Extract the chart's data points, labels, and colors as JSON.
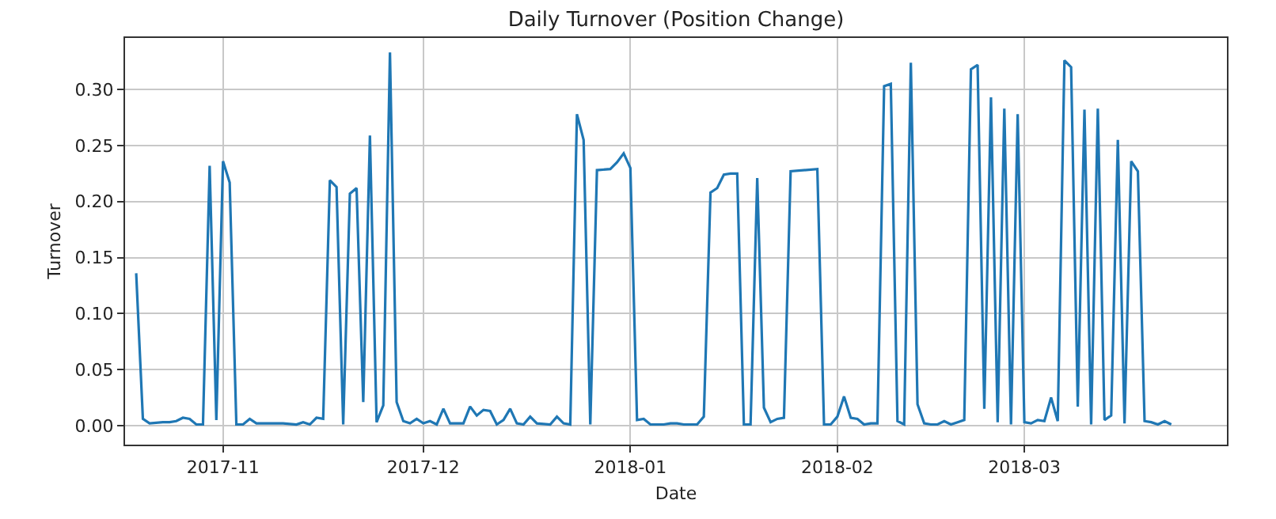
{
  "chart_data": {
    "type": "line",
    "title": "Daily Turnover (Position Change)",
    "xlabel": "Date",
    "ylabel": "Turnover",
    "x": [
      "2017-10-19",
      "2017-10-20",
      "2017-10-21",
      "2017-10-23",
      "2017-10-24",
      "2017-10-25",
      "2017-10-26",
      "2017-10-27",
      "2017-10-28",
      "2017-10-29",
      "2017-10-30",
      "2017-10-31",
      "2017-11-01",
      "2017-11-02",
      "2017-11-03",
      "2017-11-04",
      "2017-11-05",
      "2017-11-06",
      "2017-11-08",
      "2017-11-10",
      "2017-11-12",
      "2017-11-13",
      "2017-11-14",
      "2017-11-15",
      "2017-11-16",
      "2017-11-17",
      "2017-11-18",
      "2017-11-19",
      "2017-11-20",
      "2017-11-21",
      "2017-11-22",
      "2017-11-23",
      "2017-11-24",
      "2017-11-25",
      "2017-11-26",
      "2017-11-27",
      "2017-11-28",
      "2017-11-29",
      "2017-11-30",
      "2017-12-01",
      "2017-12-02",
      "2017-12-03",
      "2017-12-04",
      "2017-12-05",
      "2017-12-07",
      "2017-12-08",
      "2017-12-09",
      "2017-12-10",
      "2017-12-11",
      "2017-12-12",
      "2017-12-13",
      "2017-12-14",
      "2017-12-15",
      "2017-12-16",
      "2017-12-17",
      "2017-12-18",
      "2017-12-20",
      "2017-12-21",
      "2017-12-22",
      "2017-12-23",
      "2017-12-24",
      "2017-12-25",
      "2017-12-26",
      "2017-12-27",
      "2017-12-29",
      "2017-12-30",
      "2017-12-31",
      "2018-01-01",
      "2018-01-02",
      "2018-01-03",
      "2018-01-04",
      "2018-01-06",
      "2018-01-07",
      "2018-01-08",
      "2018-01-09",
      "2018-01-11",
      "2018-01-12",
      "2018-01-13",
      "2018-01-14",
      "2018-01-15",
      "2018-01-16",
      "2018-01-17",
      "2018-01-18",
      "2018-01-19",
      "2018-01-20",
      "2018-01-21",
      "2018-01-22",
      "2018-01-23",
      "2018-01-24",
      "2018-01-25",
      "2018-01-29",
      "2018-01-30",
      "2018-01-31",
      "2018-02-01",
      "2018-02-02",
      "2018-02-03",
      "2018-02-04",
      "2018-02-05",
      "2018-02-06",
      "2018-02-07",
      "2018-02-08",
      "2018-02-09",
      "2018-02-10",
      "2018-02-11",
      "2018-02-12",
      "2018-02-13",
      "2018-02-14",
      "2018-02-15",
      "2018-02-16",
      "2018-02-17",
      "2018-02-18",
      "2018-02-19",
      "2018-02-20",
      "2018-02-21",
      "2018-02-22",
      "2018-02-23",
      "2018-02-24",
      "2018-02-25",
      "2018-02-26",
      "2018-02-27",
      "2018-02-28",
      "2018-03-01",
      "2018-03-02",
      "2018-03-03",
      "2018-03-04",
      "2018-03-05",
      "2018-03-06",
      "2018-03-07",
      "2018-03-08",
      "2018-03-09",
      "2018-03-10",
      "2018-03-11",
      "2018-03-12",
      "2018-03-13",
      "2018-03-14",
      "2018-03-15",
      "2018-03-16",
      "2018-03-17",
      "2018-03-18",
      "2018-03-19",
      "2018-03-20",
      "2018-03-21",
      "2018-03-22",
      "2018-03-23"
    ],
    "series": [
      {
        "color": "#1f77b4",
        "values": [
          0.136,
          0.006,
          0.002,
          0.003,
          0.003,
          0.004,
          0.007,
          0.006,
          0.001,
          0.001,
          0.232,
          0.005,
          0.236,
          0.217,
          0.001,
          0.001,
          0.006,
          0.002,
          0.002,
          0.002,
          0.001,
          0.003,
          0.001,
          0.007,
          0.006,
          0.219,
          0.213,
          0.001,
          0.207,
          0.212,
          0.021,
          0.259,
          0.003,
          0.018,
          0.333,
          0.021,
          0.004,
          0.002,
          0.006,
          0.002,
          0.004,
          0.001,
          0.015,
          0.002,
          0.002,
          0.017,
          0.009,
          0.014,
          0.013,
          0.001,
          0.005,
          0.015,
          0.002,
          0.001,
          0.008,
          0.002,
          0.001,
          0.008,
          0.002,
          0.001,
          0.278,
          0.255,
          0.001,
          0.228,
          0.229,
          0.235,
          0.243,
          0.23,
          0.005,
          0.006,
          0.001,
          0.001,
          0.002,
          0.002,
          0.001,
          0.001,
          0.008,
          0.208,
          0.212,
          0.224,
          0.225,
          0.225,
          0.001,
          0.001,
          0.221,
          0.016,
          0.003,
          0.006,
          0.007,
          0.227,
          0.229,
          0.001,
          0.001,
          0.008,
          0.026,
          0.007,
          0.006,
          0.001,
          0.002,
          0.002,
          0.303,
          0.305,
          0.004,
          0.001,
          0.324,
          0.019,
          0.002,
          0.001,
          0.001,
          0.004,
          0.001,
          0.003,
          0.005,
          0.318,
          0.322,
          0.015,
          0.293,
          0.003,
          0.283,
          0.001,
          0.278,
          0.003,
          0.002,
          0.005,
          0.004,
          0.025,
          0.004,
          0.326,
          0.32,
          0.017,
          0.282,
          0.001,
          0.283,
          0.005,
          0.009,
          0.255,
          0.002,
          0.236,
          0.227,
          0.004,
          0.003,
          0.001,
          0.004,
          0.001
        ]
      }
    ],
    "xlim": [
      "2017-10-17T08:00",
      "2018-03-31T08:00"
    ],
    "xticks": [
      {
        "value": "2017-11-01",
        "label": "2017-11"
      },
      {
        "value": "2017-12-01",
        "label": "2017-12"
      },
      {
        "value": "2018-01-01",
        "label": "2018-01"
      },
      {
        "value": "2018-02-01",
        "label": "2018-02"
      },
      {
        "value": "2018-03-01",
        "label": "2018-03"
      }
    ],
    "ylim": [
      -0.017,
      0.346
    ],
    "yticks": [
      {
        "value": 0,
        "label": "0.00"
      },
      {
        "value": 0.05,
        "label": "0.05"
      },
      {
        "value": 0.1,
        "label": "0.10"
      },
      {
        "value": 0.15,
        "label": "0.15"
      },
      {
        "value": 0.2,
        "label": "0.20"
      },
      {
        "value": 0.25,
        "label": "0.25"
      },
      {
        "value": 0.3,
        "label": "0.30"
      }
    ],
    "grid": true,
    "line_style": "solid",
    "marker": "none"
  }
}
